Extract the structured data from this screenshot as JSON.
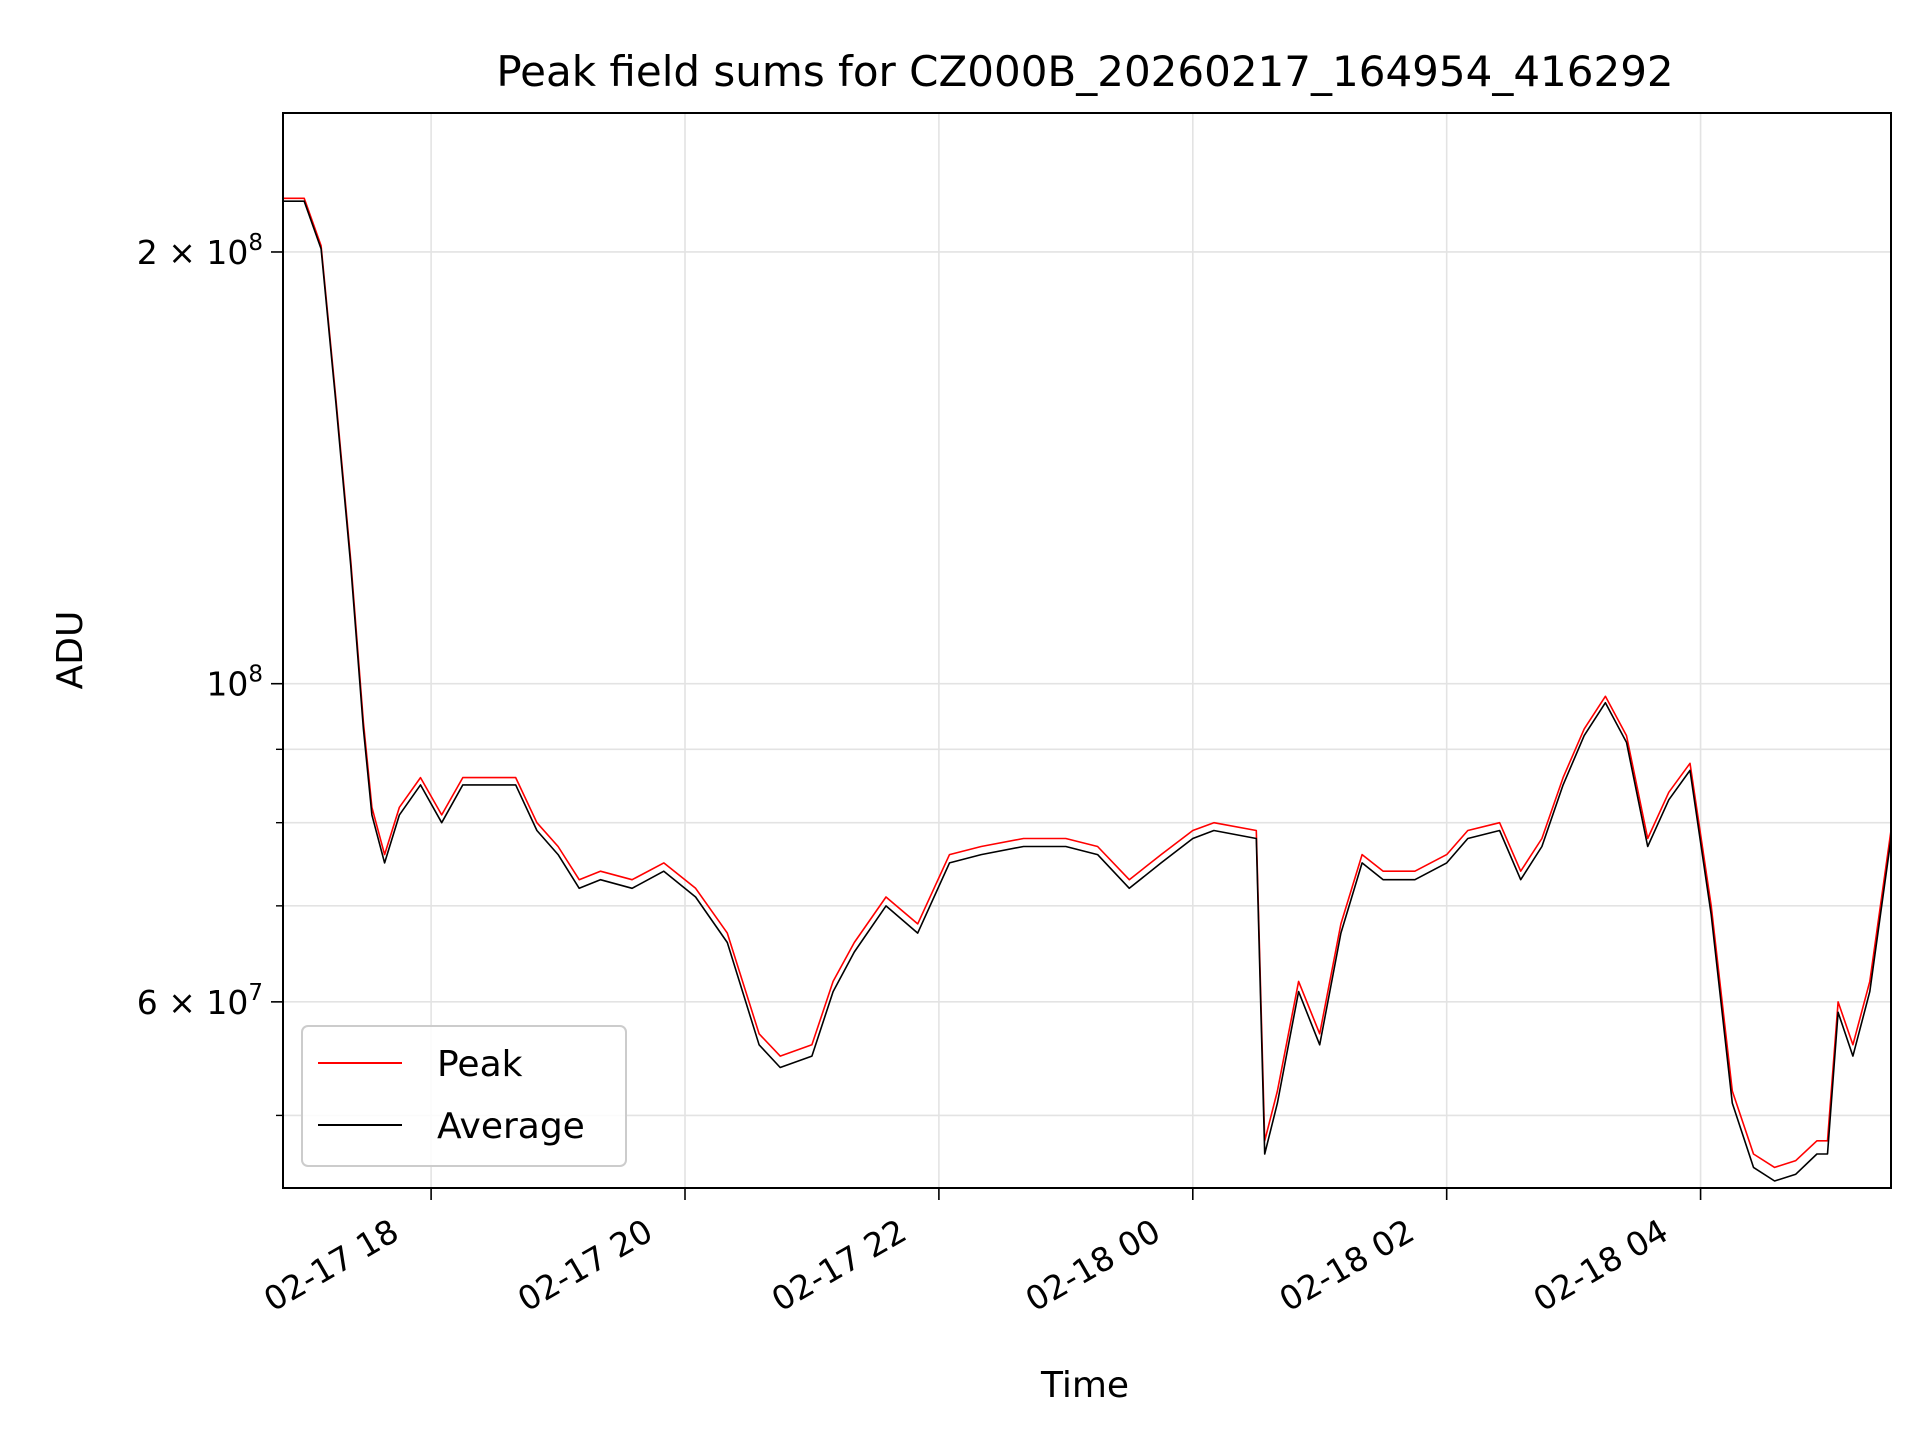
{
  "chart_data": {
    "type": "line",
    "title": "Peak field sums for CZ000B_20260217_164954_416292",
    "xlabel": "Time",
    "ylabel": "ADU",
    "yscale": "log",
    "x_start": "02-17 16:50",
    "x_end": "02-18 05:30",
    "ylim": [
      44500000,
      250000000
    ],
    "x_ticks": [
      "02-17 18",
      "02-17 20",
      "02-17 22",
      "02-18 00",
      "02-18 02",
      "02-18 04"
    ],
    "y_ticks": [
      {
        "value": 200000000,
        "mantissa": "2",
        "exponent": "8"
      },
      {
        "value": 100000000,
        "mantissa": "",
        "exponent": "8"
      },
      {
        "value": 60000000,
        "mantissa": "6",
        "exponent": "7"
      }
    ],
    "grid": true,
    "legend_position": "lower-left",
    "colors": {
      "peak": "#ff0000",
      "average": "#000000"
    },
    "series": [
      {
        "name": "Peak",
        "color": "#ff0000",
        "points": [
          [
            "02-17 16:50",
            218000000
          ],
          [
            "02-17 17:00",
            218000000
          ],
          [
            "02-17 17:08",
            202000000
          ],
          [
            "02-17 17:15",
            158000000
          ],
          [
            "02-17 17:22",
            122000000
          ],
          [
            "02-17 17:28",
            94000000
          ],
          [
            "02-17 17:32",
            82000000
          ],
          [
            "02-17 17:38",
            76000000
          ],
          [
            "02-17 17:45",
            82000000
          ],
          [
            "02-17 17:55",
            86000000
          ],
          [
            "02-17 18:05",
            81000000
          ],
          [
            "02-17 18:15",
            86000000
          ],
          [
            "02-17 18:25",
            86000000
          ],
          [
            "02-17 18:40",
            86000000
          ],
          [
            "02-17 18:50",
            80000000
          ],
          [
            "02-17 19:00",
            77000000
          ],
          [
            "02-17 19:10",
            73000000
          ],
          [
            "02-17 19:20",
            74000000
          ],
          [
            "02-17 19:35",
            73000000
          ],
          [
            "02-17 19:50",
            75000000
          ],
          [
            "02-17 20:05",
            72000000
          ],
          [
            "02-17 20:20",
            67000000
          ],
          [
            "02-17 20:35",
            57000000
          ],
          [
            "02-17 20:45",
            55000000
          ],
          [
            "02-17 21:00",
            56000000
          ],
          [
            "02-17 21:10",
            62000000
          ],
          [
            "02-17 21:20",
            66000000
          ],
          [
            "02-17 21:35",
            71000000
          ],
          [
            "02-17 21:50",
            68000000
          ],
          [
            "02-17 22:05",
            76000000
          ],
          [
            "02-17 22:20",
            77000000
          ],
          [
            "02-17 22:40",
            78000000
          ],
          [
            "02-17 23:00",
            78000000
          ],
          [
            "02-17 23:15",
            77000000
          ],
          [
            "02-17 23:30",
            73000000
          ],
          [
            "02-17 23:45",
            76000000
          ],
          [
            "02-18 00:00",
            79000000
          ],
          [
            "02-18 00:10",
            80000000
          ],
          [
            "02-18 00:30",
            79000000
          ],
          [
            "02-18 00:34",
            48000000
          ],
          [
            "02-18 00:40",
            52000000
          ],
          [
            "02-18 00:50",
            62000000
          ],
          [
            "02-18 01:00",
            57000000
          ],
          [
            "02-18 01:10",
            68000000
          ],
          [
            "02-18 01:20",
            76000000
          ],
          [
            "02-18 01:30",
            74000000
          ],
          [
            "02-18 01:45",
            74000000
          ],
          [
            "02-18 02:00",
            76000000
          ],
          [
            "02-18 02:10",
            79000000
          ],
          [
            "02-18 02:25",
            80000000
          ],
          [
            "02-18 02:35",
            74000000
          ],
          [
            "02-18 02:45",
            78000000
          ],
          [
            "02-18 02:55",
            86000000
          ],
          [
            "02-18 03:05",
            93000000
          ],
          [
            "02-18 03:15",
            98000000
          ],
          [
            "02-18 03:25",
            92000000
          ],
          [
            "02-18 03:35",
            78000000
          ],
          [
            "02-18 03:45",
            84000000
          ],
          [
            "02-18 03:55",
            88000000
          ],
          [
            "02-18 04:05",
            70000000
          ],
          [
            "02-18 04:15",
            52000000
          ],
          [
            "02-18 04:25",
            47000000
          ],
          [
            "02-18 04:35",
            46000000
          ],
          [
            "02-18 04:45",
            46500000
          ],
          [
            "02-18 04:55",
            48000000
          ],
          [
            "02-18 05:00",
            48000000
          ],
          [
            "02-18 05:05",
            60000000
          ],
          [
            "02-18 05:12",
            56000000
          ],
          [
            "02-18 05:20",
            62000000
          ],
          [
            "02-18 05:30",
            79000000
          ]
        ]
      },
      {
        "name": "Average",
        "color": "#000000",
        "points": [
          [
            "02-17 16:50",
            217000000
          ],
          [
            "02-17 17:00",
            217000000
          ],
          [
            "02-17 17:08",
            201000000
          ],
          [
            "02-17 17:15",
            157000000
          ],
          [
            "02-17 17:22",
            121000000
          ],
          [
            "02-17 17:28",
            93000000
          ],
          [
            "02-17 17:32",
            81000000
          ],
          [
            "02-17 17:38",
            75000000
          ],
          [
            "02-17 17:45",
            81000000
          ],
          [
            "02-17 17:55",
            85000000
          ],
          [
            "02-17 18:05",
            80000000
          ],
          [
            "02-17 18:15",
            85000000
          ],
          [
            "02-17 18:25",
            85000000
          ],
          [
            "02-17 18:40",
            85000000
          ],
          [
            "02-17 18:50",
            79000000
          ],
          [
            "02-17 19:00",
            76000000
          ],
          [
            "02-17 19:10",
            72000000
          ],
          [
            "02-17 19:20",
            73000000
          ],
          [
            "02-17 19:35",
            72000000
          ],
          [
            "02-17 19:50",
            74000000
          ],
          [
            "02-17 20:05",
            71000000
          ],
          [
            "02-17 20:20",
            66000000
          ],
          [
            "02-17 20:35",
            56000000
          ],
          [
            "02-17 20:45",
            54000000
          ],
          [
            "02-17 21:00",
            55000000
          ],
          [
            "02-17 21:10",
            61000000
          ],
          [
            "02-17 21:20",
            65000000
          ],
          [
            "02-17 21:35",
            70000000
          ],
          [
            "02-17 21:50",
            67000000
          ],
          [
            "02-17 22:05",
            75000000
          ],
          [
            "02-17 22:20",
            76000000
          ],
          [
            "02-17 22:40",
            77000000
          ],
          [
            "02-17 23:00",
            77000000
          ],
          [
            "02-17 23:15",
            76000000
          ],
          [
            "02-17 23:30",
            72000000
          ],
          [
            "02-17 23:45",
            75000000
          ],
          [
            "02-18 00:00",
            78000000
          ],
          [
            "02-18 00:10",
            79000000
          ],
          [
            "02-18 00:30",
            78000000
          ],
          [
            "02-18 00:34",
            47000000
          ],
          [
            "02-18 00:40",
            51000000
          ],
          [
            "02-18 00:50",
            61000000
          ],
          [
            "02-18 01:00",
            56000000
          ],
          [
            "02-18 01:10",
            67000000
          ],
          [
            "02-18 01:20",
            75000000
          ],
          [
            "02-18 01:30",
            73000000
          ],
          [
            "02-18 01:45",
            73000000
          ],
          [
            "02-18 02:00",
            75000000
          ],
          [
            "02-18 02:10",
            78000000
          ],
          [
            "02-18 02:25",
            79000000
          ],
          [
            "02-18 02:35",
            73000000
          ],
          [
            "02-18 02:45",
            77000000
          ],
          [
            "02-18 02:55",
            85000000
          ],
          [
            "02-18 03:05",
            92000000
          ],
          [
            "02-18 03:15",
            97000000
          ],
          [
            "02-18 03:25",
            91000000
          ],
          [
            "02-18 03:35",
            77000000
          ],
          [
            "02-18 03:45",
            83000000
          ],
          [
            "02-18 03:55",
            87000000
          ],
          [
            "02-18 04:05",
            69000000
          ],
          [
            "02-18 04:15",
            51000000
          ],
          [
            "02-18 04:25",
            46000000
          ],
          [
            "02-18 04:35",
            45000000
          ],
          [
            "02-18 04:45",
            45500000
          ],
          [
            "02-18 04:55",
            47000000
          ],
          [
            "02-18 05:00",
            47000000
          ],
          [
            "02-18 05:05",
            59000000
          ],
          [
            "02-18 05:12",
            55000000
          ],
          [
            "02-18 05:20",
            61000000
          ],
          [
            "02-18 05:30",
            78000000
          ]
        ]
      }
    ]
  }
}
